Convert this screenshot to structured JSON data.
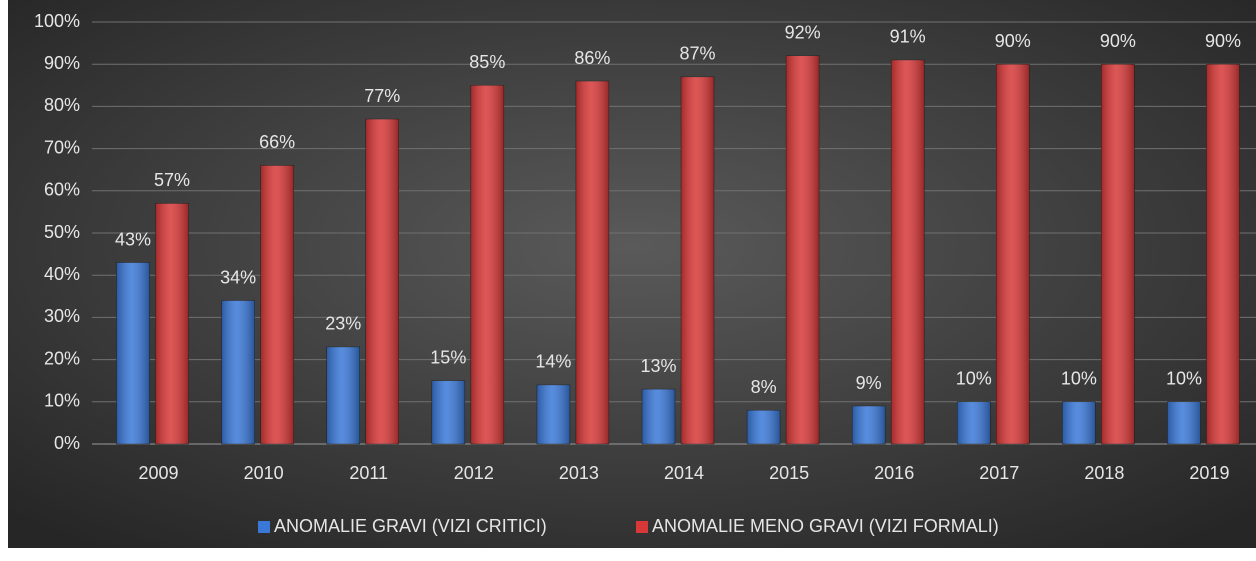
{
  "chart_data": {
    "type": "bar",
    "categories": [
      "2009",
      "2010",
      "2011",
      "2012",
      "2013",
      "2014",
      "2015",
      "2016",
      "2017",
      "2018",
      "2019"
    ],
    "series": [
      {
        "name": "ANOMALIE GRAVI (VIZI CRITICI)",
        "color": "#3a78d8",
        "values": [
          43,
          34,
          23,
          15,
          14,
          13,
          8,
          9,
          10,
          10,
          10
        ],
        "value_labels": [
          "43%",
          "34%",
          "23%",
          "15%",
          "14%",
          "13%",
          "8%",
          "9%",
          "10%",
          "10%",
          "10%"
        ]
      },
      {
        "name": "ANOMALIE MENO GRAVI (VIZI FORMALI)",
        "color": "#d83838",
        "values": [
          57,
          66,
          77,
          85,
          86,
          87,
          92,
          91,
          90,
          90,
          90
        ],
        "value_labels": [
          "57%",
          "66%",
          "77%",
          "85%",
          "86%",
          "87%",
          "92%",
          "91%",
          "90%",
          "90%",
          "90%"
        ]
      }
    ],
    "ylim": [
      0,
      100
    ],
    "yticks": [
      {
        "value": 0,
        "label": "0%"
      },
      {
        "value": 10,
        "label": "10%"
      },
      {
        "value": 20,
        "label": "20%"
      },
      {
        "value": 30,
        "label": "30%"
      },
      {
        "value": 40,
        "label": "40%"
      },
      {
        "value": 50,
        "label": "50%"
      },
      {
        "value": 60,
        "label": "60%"
      },
      {
        "value": 70,
        "label": "70%"
      },
      {
        "value": 80,
        "label": "80%"
      },
      {
        "value": 90,
        "label": "90%"
      },
      {
        "value": 100,
        "label": "100%"
      }
    ],
    "grid": true,
    "legend": "bottom"
  }
}
